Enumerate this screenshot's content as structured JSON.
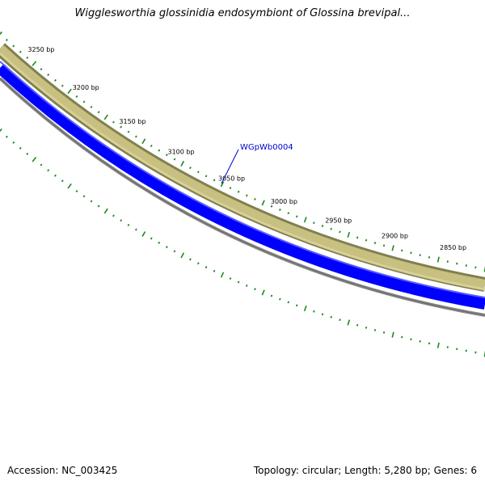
{
  "title": "Wigglesworthia glossinidia endosymbiont of Glossina brevipal...",
  "accession": "Accession: NC_003425",
  "summary": "Topology: circular; Length: 5,280 bp; Genes: 6",
  "colors": {
    "gc_band": "#c8c080",
    "gc_band_edge": "#808050",
    "forward_strand": "#0000ff",
    "backbone": "#888888",
    "ticks": "#1a8a1a",
    "gene_label": "#0000cc"
  },
  "ruler_labels": [
    "3250 bp",
    "3200 bp",
    "3150 bp",
    "3100 bp",
    "3050 bp",
    "3000 bp",
    "2950 bp",
    "2900 bp",
    "2850 bp"
  ],
  "gene_label": "WGpWb0004"
}
